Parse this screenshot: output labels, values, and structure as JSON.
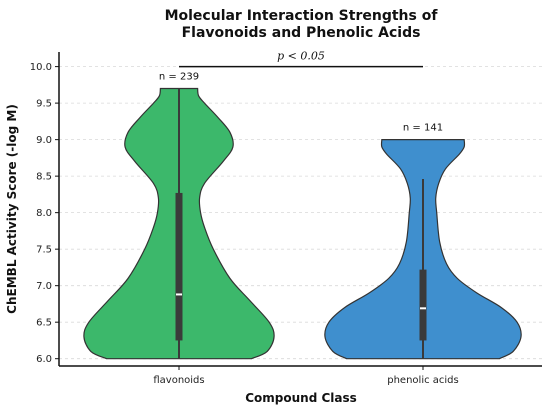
{
  "chart_data": {
    "type": "violin",
    "title": [
      "Molecular Interaction Strengths of",
      "Flavonoids and Phenolic Acids"
    ],
    "xlabel": "Compound Class",
    "ylabel": "ChEMBL Activity Score (-log M)",
    "ylim": [
      5.9,
      10.2
    ],
    "yticks": [
      "6.0",
      "6.5",
      "7.0",
      "7.5",
      "8.0",
      "8.5",
      "9.0",
      "9.5",
      "10.0"
    ],
    "grid": "horizontal dashed",
    "categories": [
      "flavonoids",
      "phenolic acids"
    ],
    "colors": [
      "#3cb86b",
      "#3f8fce"
    ],
    "violins": [
      {
        "category": "flavonoids",
        "n_label": "n = 239",
        "min": 6.0,
        "max": 9.7,
        "q1": 6.25,
        "median": 6.88,
        "q3": 8.27,
        "whisker_low": 6.0,
        "whisker_high": 9.7,
        "profile": [
          [
            6.0,
            0.74
          ],
          [
            6.1,
            0.9
          ],
          [
            6.3,
            0.97
          ],
          [
            6.5,
            0.92
          ],
          [
            6.8,
            0.72
          ],
          [
            7.1,
            0.52
          ],
          [
            7.5,
            0.35
          ],
          [
            7.8,
            0.26
          ],
          [
            8.0,
            0.22
          ],
          [
            8.2,
            0.21
          ],
          [
            8.4,
            0.26
          ],
          [
            8.7,
            0.45
          ],
          [
            8.9,
            0.55
          ],
          [
            9.1,
            0.52
          ],
          [
            9.3,
            0.4
          ],
          [
            9.5,
            0.26
          ],
          [
            9.6,
            0.2
          ],
          [
            9.7,
            0.19
          ]
        ]
      },
      {
        "category": "phenolic acids",
        "n_label": "n = 141",
        "min": 6.0,
        "max": 9.0,
        "q1": 6.25,
        "median": 6.69,
        "q3": 7.22,
        "whisker_low": 6.0,
        "whisker_high": 8.46,
        "profile": [
          [
            6.0,
            0.78
          ],
          [
            6.1,
            0.92
          ],
          [
            6.3,
            1.0
          ],
          [
            6.5,
            0.96
          ],
          [
            6.7,
            0.8
          ],
          [
            6.9,
            0.55
          ],
          [
            7.1,
            0.35
          ],
          [
            7.3,
            0.24
          ],
          [
            7.6,
            0.17
          ],
          [
            8.0,
            0.14
          ],
          [
            8.2,
            0.13
          ],
          [
            8.4,
            0.16
          ],
          [
            8.6,
            0.23
          ],
          [
            8.8,
            0.37
          ],
          [
            8.9,
            0.42
          ],
          [
            9.0,
            0.42
          ]
        ]
      }
    ],
    "significance": {
      "label": "p < 0.05",
      "y": 10.0
    }
  }
}
